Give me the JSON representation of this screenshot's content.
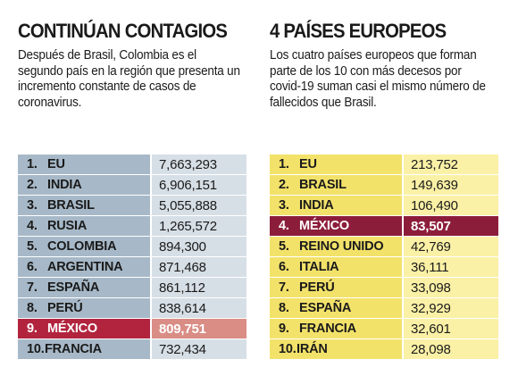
{
  "left": {
    "title": "CONTINÚAN CONTAGIOS",
    "description": "Después de Brasil, Colombia es el segundo país en la región que presenta un incremento constante de casos de coronavirus.",
    "rows": [
      {
        "rank": "1.",
        "country": "EU",
        "value": "7,663,293"
      },
      {
        "rank": "2.",
        "country": "INDIA",
        "value": "6,906,151"
      },
      {
        "rank": "3.",
        "country": "BRASIL",
        "value": "5,055,888"
      },
      {
        "rank": "4.",
        "country": "RUSIA",
        "value": "1,265,572"
      },
      {
        "rank": "5.",
        "country": "COLOMBIA",
        "value": "894,300"
      },
      {
        "rank": "6.",
        "country": "ARGENTINA",
        "value": "871,468"
      },
      {
        "rank": "7.",
        "country": "ESPAÑA",
        "value": "861,112"
      },
      {
        "rank": "8.",
        "country": "PERÚ",
        "value": "838,614"
      },
      {
        "rank": "9.",
        "country": "MÉXICO",
        "value": "809,751",
        "highlight": true
      },
      {
        "rank": "10.",
        "country": "FRANCIA",
        "value": "732,434"
      }
    ]
  },
  "right": {
    "title": "4 PAÍSES EUROPEOS",
    "description": "Los cuatro países europeos que forman parte de los 10 con más decesos por covid-19 suman casi el mismo número de fallecidos que Brasil.",
    "rows": [
      {
        "rank": "1.",
        "country": "EU",
        "value": "213,752"
      },
      {
        "rank": "2.",
        "country": "BRASIL",
        "value": "149,639"
      },
      {
        "rank": "3.",
        "country": "INDIA",
        "value": "106,490"
      },
      {
        "rank": "4.",
        "country": "MÉXICO",
        "value": "83,507",
        "highlight": true
      },
      {
        "rank": "5.",
        "country": "REINO UNIDO",
        "value": "42,769"
      },
      {
        "rank": "6.",
        "country": "ITALIA",
        "value": "36,111"
      },
      {
        "rank": "7.",
        "country": "PERÚ",
        "value": "33,098"
      },
      {
        "rank": "8.",
        "country": "ESPAÑA",
        "value": "32,929"
      },
      {
        "rank": "9.",
        "country": "FRANCIA",
        "value": "32,601"
      },
      {
        "rank": "10.",
        "country": "IRÁN",
        "value": "28,098"
      }
    ]
  },
  "colors": {
    "left_name_bg": "#a7b9c8",
    "left_value_bg": "#d7dfe6",
    "right_name_bg": "#f3e26a",
    "right_value_bg": "#fbf1a6",
    "highlight_dark": "#8c1d3a",
    "highlight_red": "#b2243e"
  }
}
